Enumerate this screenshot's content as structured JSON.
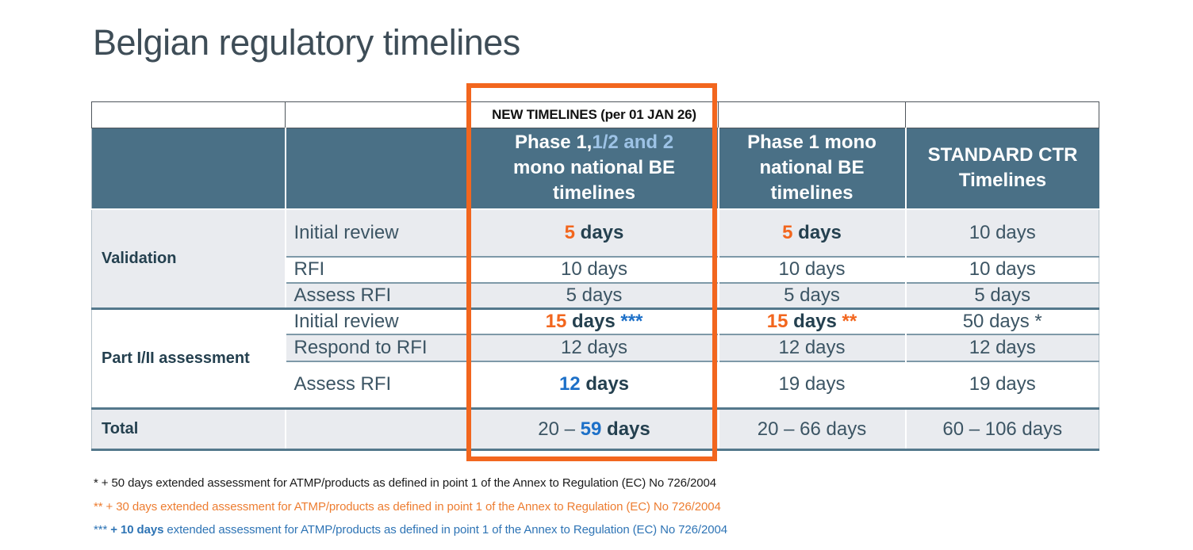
{
  "page": {
    "title": "Belgian regulatory timelines"
  },
  "colors": {
    "orange": "#F2661E",
    "blue": "#1D70C8",
    "ink": "#24404F",
    "accent": "#F2661E",
    "headerBg": "#4A7086",
    "rowGray": "#E9EBEF",
    "bodyText": "#3C5564",
    "lightBlue": "#9DC3E6",
    "fnBlack": "#1A1A1A",
    "fnOrange": "#ED7D31",
    "fnBlue": "#2E74B5"
  },
  "table": {
    "banner": "NEW TIMELINES (per 01 JAN 26)",
    "headers": {
      "h1": {
        "line1_white": "Phase 1,",
        "line1_blue": "1/2 and 2",
        "line2": "mono national BE",
        "line3": "timelines"
      },
      "h2": {
        "line1": "Phase 1 mono",
        "line2": "national BE",
        "line3": "timelines"
      },
      "h3": {
        "line1": "STANDARD CTR",
        "line2": "Timelines"
      }
    },
    "body": {
      "validation": {
        "group": "Validation",
        "initial_review": {
          "step": "Initial review",
          "c1": [
            {
              "t": "5",
              "c": "orange",
              "b": 1
            },
            {
              "t": " days",
              "c": "ink",
              "b": 1
            }
          ],
          "c2": [
            {
              "t": "5",
              "c": "orange",
              "b": 1
            },
            {
              "t": " days",
              "c": "ink",
              "b": 1
            }
          ],
          "c3": [
            {
              "t": "10 days"
            }
          ]
        },
        "rfi": {
          "step": "RFI",
          "c1": [
            {
              "t": "10 days"
            }
          ],
          "c2": [
            {
              "t": "10 days"
            }
          ],
          "c3": [
            {
              "t": "10 days"
            }
          ]
        },
        "assess_rfi": {
          "step": "Assess RFI",
          "c1": [
            {
              "t": "5 days"
            }
          ],
          "c2": [
            {
              "t": "5 days"
            }
          ],
          "c3": [
            {
              "t": "5 days"
            }
          ]
        }
      },
      "part_assessment": {
        "group": "Part I/II assessment",
        "initial_review": {
          "step": "Initial review",
          "c1": [
            {
              "t": "15",
              "c": "orange",
              "b": 1
            },
            {
              "t": " days ",
              "c": "ink",
              "b": 1
            },
            {
              "t": "***",
              "c": "blue",
              "b": 1
            }
          ],
          "c2": [
            {
              "t": "15",
              "c": "orange",
              "b": 1
            },
            {
              "t": " days ",
              "c": "ink",
              "b": 1
            },
            {
              "t": "**",
              "c": "orange",
              "b": 1
            }
          ],
          "c3": [
            {
              "t": "50 days *"
            }
          ]
        },
        "respond_rfi": {
          "step": "Respond to RFI",
          "c1": [
            {
              "t": "12 days"
            }
          ],
          "c2": [
            {
              "t": "12 days"
            }
          ],
          "c3": [
            {
              "t": "12 days"
            }
          ]
        },
        "assess_rfi": {
          "step": "Assess RFI",
          "c1": [
            {
              "t": "12",
              "c": "blue",
              "b": 1
            },
            {
              "t": " days",
              "c": "ink",
              "b": 1
            }
          ],
          "c2": [
            {
              "t": "19 days"
            }
          ],
          "c3": [
            {
              "t": "19 days"
            }
          ]
        }
      },
      "total": {
        "label": "Total",
        "c1": [
          {
            "t": "20 – "
          },
          {
            "t": "59",
            "c": "blue",
            "b": 1
          },
          {
            "t": " days",
            "c": "ink",
            "b": 1
          }
        ],
        "c2": [
          {
            "t": "20 – 66 days"
          }
        ],
        "c3": [
          {
            "t": "60 – 106 days"
          }
        ]
      }
    }
  },
  "footnotes": {
    "fn1": [
      {
        "t": "* + 50 days extended assessment for ATMP/products as defined in point 1 of the Annex to Regulation (EC) No 726/2004",
        "c": "fnBlack"
      }
    ],
    "fn2": [
      {
        "t": "** + 30 days extended assessment for ATMP/products as defined in point 1 of the Annex to Regulation (EC) No 726/2004",
        "c": "fnOrange"
      }
    ],
    "fn3": [
      {
        "t": "*** ",
        "c": "fnBlue"
      },
      {
        "t": "+ 10 days",
        "c": "fnBlue",
        "b": 1
      },
      {
        "t": " extended assessment for ATMP/products as defined in point 1 of the Annex to Regulation (EC) No 726/2004",
        "c": "fnBlue"
      }
    ]
  }
}
